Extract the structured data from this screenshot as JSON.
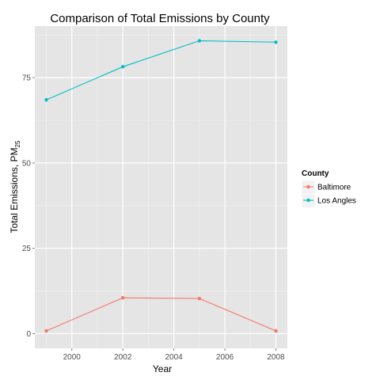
{
  "chart_data": {
    "type": "line",
    "title": "Comparison of Total Emissions by County",
    "xlabel": "Year",
    "ylabel": "Total Emissions, PM",
    "ylabel_subscript": "25",
    "x": [
      1999,
      2002,
      2005,
      2008
    ],
    "xlim": [
      1998.55,
      2008.45
    ],
    "ylim": [
      -4.3,
      90.1
    ],
    "x_ticks": [
      2000,
      2002,
      2004,
      2006,
      2008
    ],
    "x_minor_ticks": [
      1999,
      2001,
      2003,
      2005,
      2007
    ],
    "y_ticks": [
      0,
      25,
      50,
      75
    ],
    "y_minor_ticks": [
      12.5,
      37.5,
      62.5,
      87.5
    ],
    "grid": true,
    "legend": {
      "title": "County",
      "position": "right"
    },
    "series": [
      {
        "name": "Baltimore",
        "color": "#F8766D",
        "values": [
          0.8,
          10.5,
          10.3,
          0.8
        ]
      },
      {
        "name": "Los Angles",
        "color": "#00BFC4",
        "values": [
          68.5,
          78.2,
          85.8,
          85.4
        ]
      }
    ],
    "colors": {
      "panel_background": "#E5E5E5",
      "grid_major": "#FFFFFF",
      "grid_minor": "#F2F2F2"
    }
  }
}
